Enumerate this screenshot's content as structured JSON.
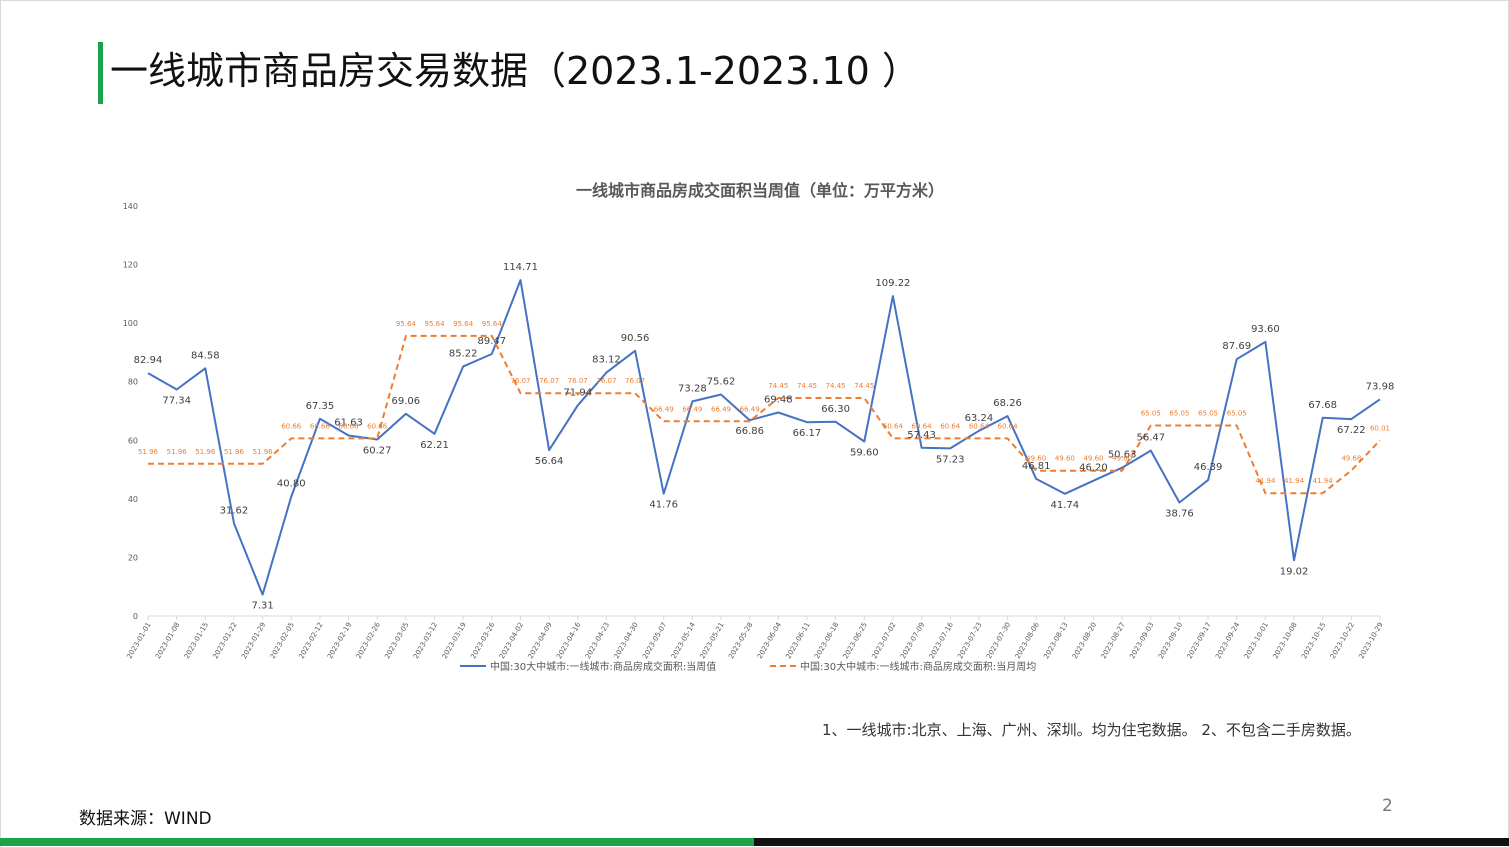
{
  "page": {
    "title": "一线城市商品房交易数据（2023.1-2023.10 ）",
    "note": "1、一线城市:北京、上海、广州、深圳。均为住宅数据。 2、不包含二手房数据。",
    "source": "数据来源：WIND",
    "page_number": "2",
    "accent_color": "#1aa34a"
  },
  "chart_data": {
    "type": "line",
    "title": "一线城市商品房成交面积当周值（单位：万平方米）",
    "xlabel": "",
    "ylabel": "",
    "ylim": [
      0,
      140
    ],
    "yticks": [
      0,
      20,
      40,
      60,
      80,
      100,
      120,
      140
    ],
    "grid": false,
    "legend_position": "bottom",
    "categories": [
      "2023-01-01",
      "2023-01-08",
      "2023-01-15",
      "2023-01-22",
      "2023-01-29",
      "2023-02-05",
      "2023-02-12",
      "2023-02-19",
      "2023-02-26",
      "2023-03-05",
      "2023-03-12",
      "2023-03-19",
      "2023-03-26",
      "2023-04-02",
      "2023-04-09",
      "2023-04-16",
      "2023-04-23",
      "2023-04-30",
      "2023-05-07",
      "2023-05-14",
      "2023-05-21",
      "2023-05-28",
      "2023-06-04",
      "2023-06-11",
      "2023-06-18",
      "2023-06-25",
      "2023-07-02",
      "2023-07-09",
      "2023-07-16",
      "2023-07-23",
      "2023-07-30",
      "2023-08-06",
      "2023-08-13",
      "2023-08-20",
      "2023-08-27",
      "2023-09-03",
      "2023-09-10",
      "2023-09-17",
      "2023-09-24",
      "2023-10-01",
      "2023-10-08",
      "2023-10-15",
      "2023-10-22",
      "2023-10-29"
    ],
    "series": [
      {
        "name": "中国:30大中城市:一线城市:商品房成交面积:当周值",
        "color": "#4472c4",
        "style": "solid",
        "values": [
          82.94,
          77.34,
          84.58,
          31.62,
          7.31,
          40.8,
          67.35,
          61.63,
          60.27,
          69.06,
          62.21,
          85.22,
          89.47,
          114.71,
          56.64,
          71.94,
          83.12,
          90.56,
          41.76,
          73.28,
          75.62,
          66.86,
          69.48,
          66.17,
          66.3,
          59.6,
          109.22,
          57.43,
          57.23,
          63.24,
          68.26,
          46.81,
          41.74,
          46.2,
          50.63,
          56.47,
          38.76,
          46.39,
          87.69,
          93.6,
          19.02,
          67.68,
          67.22,
          73.98
        ],
        "labels": [
          "82.94",
          "77.34",
          "84.58",
          "31.62",
          "7.31",
          "40.80",
          "67.35",
          "61.63",
          "60.27",
          "69.06",
          "62.21",
          "85.22",
          "89.47",
          "114.71",
          "56.64",
          "71.94",
          "83.12",
          "90.56",
          "41.76",
          "73.28",
          "75.62",
          "66.86",
          "69.48",
          "66.17",
          "66.30",
          "59.60",
          "109.22",
          "57.43",
          "57.23",
          "63.24",
          "68.26",
          "46.81",
          "41.74",
          "46.20",
          "50.63",
          "56.47",
          "38.76",
          "46.39",
          "87.69",
          "93.60",
          "19.02",
          "67.68",
          "67.22",
          "73.98"
        ]
      },
      {
        "name": "中国:30大中城市:一线城市:商品房成交面积:当月周均",
        "color": "#ed7d31",
        "style": "dashed",
        "values": [
          51.96,
          51.96,
          51.96,
          51.96,
          51.96,
          60.66,
          60.66,
          60.66,
          60.66,
          95.64,
          95.64,
          95.64,
          95.64,
          76.07,
          76.07,
          76.07,
          76.07,
          76.07,
          66.49,
          66.49,
          66.49,
          66.49,
          74.45,
          74.45,
          74.45,
          74.45,
          60.64,
          60.64,
          60.64,
          60.64,
          60.64,
          49.6,
          49.6,
          49.6,
          49.6,
          65.05,
          65.05,
          65.05,
          65.05,
          41.94,
          41.94,
          41.94,
          49.68,
          60.01
        ],
        "labels": [
          "51.96",
          "51.96",
          "51.96",
          "51.96",
          "51.96",
          "60.66",
          "60.66",
          "60.66",
          "60.66",
          "95.64",
          "95.64",
          "95.64",
          "95.64",
          "76.07",
          "76.07",
          "76.07",
          "76.07",
          "76.07",
          "66.49",
          "66.49",
          "66.49",
          "66.49",
          "74.45",
          "74.45",
          "74.45",
          "74.45",
          "60.64",
          "60.64",
          "60.64",
          "60.64",
          "60.64",
          "49.60",
          "49.60",
          "49.60",
          "49.60",
          "65.05",
          "65.05",
          "65.05",
          "65.05",
          "41.94",
          "41.94",
          "41.94",
          "49.68",
          "60.01"
        ]
      }
    ]
  }
}
